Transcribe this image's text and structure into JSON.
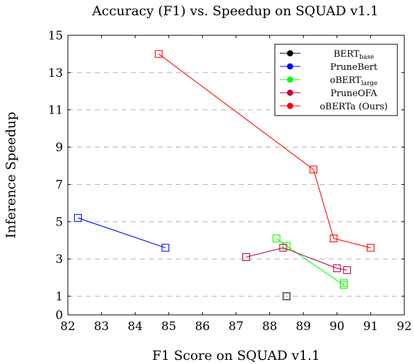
{
  "chart_data": {
    "type": "line",
    "title": "Accuracy (F1) vs. Speedup on SQUAD v1.1",
    "xlabel": "F1 Score on SQUAD v1.1",
    "ylabel": "Inference Speedup",
    "xlim": [
      82,
      92
    ],
    "ylim": [
      0,
      15
    ],
    "xticks": [
      82,
      83,
      84,
      85,
      86,
      87,
      88,
      89,
      90,
      91,
      92
    ],
    "yticks": [
      0,
      1,
      3,
      5,
      7,
      9,
      11,
      13,
      15
    ],
    "ygrid": [
      1,
      3,
      5,
      7,
      9,
      11,
      13
    ],
    "legend_position": "top-right",
    "series": [
      {
        "name": "BERT",
        "name_sub": "base",
        "color": "#000000",
        "points": [
          [
            88.5,
            1.0
          ]
        ]
      },
      {
        "name": "PruneBert",
        "name_sub": "",
        "color": "#0000ff",
        "points": [
          [
            82.3,
            5.2
          ],
          [
            84.9,
            3.6
          ]
        ]
      },
      {
        "name": "oBERT",
        "name_sub": "large",
        "color": "#00ff00",
        "points": [
          [
            88.2,
            4.1
          ],
          [
            88.5,
            3.7
          ],
          [
            90.2,
            1.6
          ],
          [
            90.2,
            1.7
          ]
        ]
      },
      {
        "name": "PruneOFA",
        "name_sub": "",
        "color": "#bf0040",
        "points": [
          [
            87.3,
            3.1
          ],
          [
            88.4,
            3.6
          ],
          [
            90.0,
            2.5
          ],
          [
            90.3,
            2.4
          ]
        ]
      },
      {
        "name": "oBERTa (Ours)",
        "name_sub": "",
        "color": "#ff0000",
        "points": [
          [
            84.7,
            14.0
          ],
          [
            89.3,
            7.8
          ],
          [
            89.9,
            4.1
          ],
          [
            91.0,
            3.6
          ]
        ]
      }
    ]
  }
}
